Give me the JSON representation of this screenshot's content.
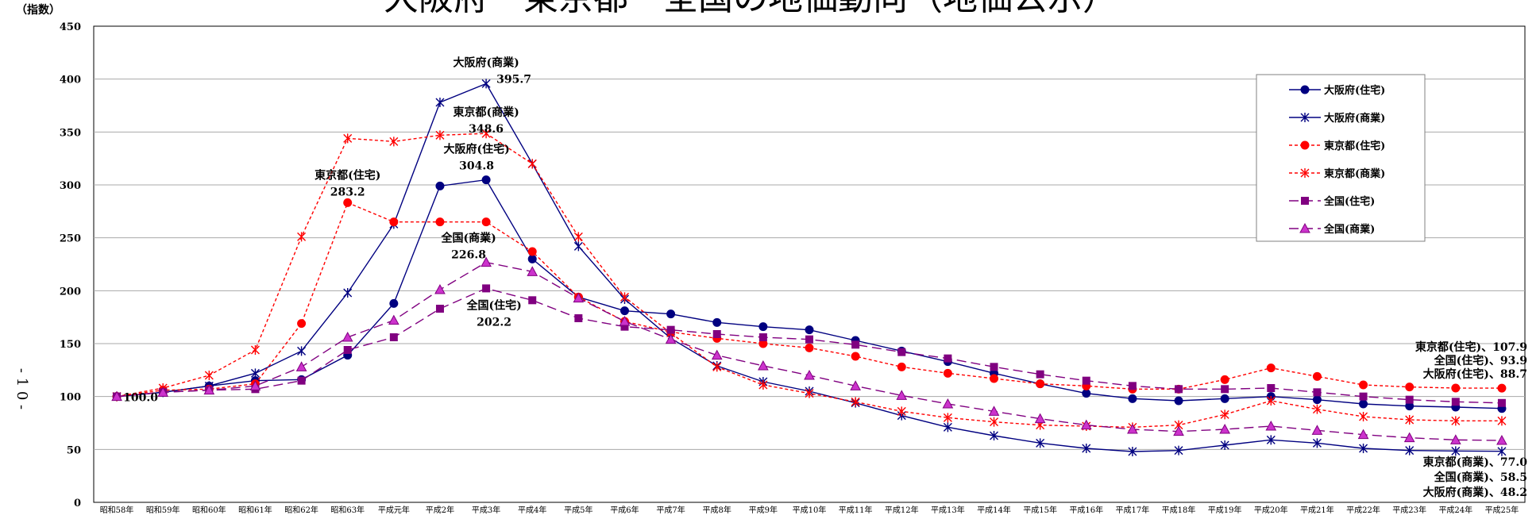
{
  "chart_data": {
    "type": "line",
    "title": "大阪府・東京都・全国の地価動向（地価公示）",
    "ylabel": "（指数）",
    "page_number": "- 1 0 -",
    "ylim": [
      0,
      450
    ],
    "yticks": [
      0,
      50,
      100,
      150,
      200,
      250,
      300,
      350,
      400,
      450
    ],
    "grid": true,
    "legend_position": "top-right",
    "categories": [
      "昭和58年",
      "昭和59年",
      "昭和60年",
      "昭和61年",
      "昭和62年",
      "昭和63年",
      "平成元年",
      "平成2年",
      "平成3年",
      "平成4年",
      "平成5年",
      "平成6年",
      "平成7年",
      "平成8年",
      "平成9年",
      "平成10年",
      "平成11年",
      "平成12年",
      "平成13年",
      "平成14年",
      "平成15年",
      "平成16年",
      "平成17年",
      "平成18年",
      "平成19年",
      "平成20年",
      "平成21年",
      "平成22年",
      "平成23年",
      "平成24年",
      "平成25年"
    ],
    "series": [
      {
        "name": "大阪府(住宅)",
        "color": "#000080",
        "dash": "",
        "marker": "circle",
        "values": [
          100,
          104,
          110,
          115,
          116,
          139,
          188,
          299,
          304.8,
          230,
          194,
          181,
          178,
          170,
          166,
          163,
          153,
          143,
          133,
          122,
          112,
          103,
          98,
          96,
          98,
          100,
          97,
          93,
          91,
          90,
          88.7
        ]
      },
      {
        "name": "大阪府(商業)",
        "color": "#000080",
        "dash": "",
        "marker": "x",
        "values": [
          100,
          104,
          110,
          122,
          143,
          198,
          263,
          378,
          395.7,
          320,
          242,
          192,
          155,
          129,
          114,
          105,
          94,
          82,
          71,
          63,
          56,
          51,
          48,
          49,
          54,
          59,
          56,
          51,
          49,
          48.5,
          48.2
        ]
      },
      {
        "name": "東京都(住宅)",
        "color": "#ff0000",
        "dash": "4,3",
        "marker": "circle",
        "values": [
          100,
          106,
          107,
          112,
          169,
          283.2,
          265,
          265,
          265,
          237,
          194,
          171,
          161,
          155,
          150,
          146,
          138,
          128,
          122,
          117,
          112,
          110,
          107,
          107,
          116,
          127,
          119,
          111,
          109,
          108,
          107.9
        ]
      },
      {
        "name": "東京都(商業)",
        "color": "#ff0000",
        "dash": "4,3",
        "marker": "x",
        "values": [
          100,
          108,
          120,
          144,
          251,
          344,
          341,
          347,
          348.6,
          320,
          251,
          194,
          160,
          128,
          111,
          103,
          95,
          86,
          80,
          76,
          73,
          72,
          71,
          73,
          83,
          96,
          88,
          81,
          78,
          77,
          77.0
        ]
      },
      {
        "name": "全国(住宅)",
        "color": "#800080",
        "dash": "12,6",
        "marker": "square",
        "values": [
          100,
          104,
          106,
          107,
          115,
          144,
          156,
          183,
          202.2,
          191,
          174,
          166,
          163,
          159,
          156,
          154,
          149,
          142,
          136,
          128,
          121,
          115,
          110,
          107,
          107,
          108,
          104,
          100,
          97,
          95,
          93.9
        ]
      },
      {
        "name": "全国(商業)",
        "color": "#800080",
        "dash": "12,6",
        "marker": "triangle",
        "values": [
          100,
          104,
          106,
          110,
          128,
          156,
          172,
          201,
          226.8,
          218,
          193,
          171,
          154,
          139,
          129,
          120,
          110,
          101,
          93,
          86,
          79,
          73,
          69,
          67,
          69,
          72,
          68,
          64,
          61,
          59,
          58.5
        ]
      }
    ],
    "annotations": [
      {
        "text": "100.0",
        "x": 0,
        "y": 100
      },
      {
        "text": "大阪府(商業)",
        "x": 8,
        "y": 395.7,
        "line": 1
      },
      {
        "text": "395.7",
        "x": 8,
        "y": 395.7,
        "line": 2
      },
      {
        "text": "東京都(商業)",
        "x": 8,
        "y": 348.6,
        "line": 1
      },
      {
        "text": "348.6",
        "x": 8,
        "y": 348.6,
        "line": 2
      },
      {
        "text": "大阪府(住宅)",
        "x": 8,
        "y": 304.8,
        "line": 1
      },
      {
        "text": "304.8",
        "x": 8,
        "y": 304.8,
        "line": 2
      },
      {
        "text": "東京都(住宅)",
        "x": 5,
        "y": 283.2,
        "line": 1
      },
      {
        "text": "283.2",
        "x": 5,
        "y": 283.2,
        "line": 2
      },
      {
        "text": "全国(商業)",
        "x": 8,
        "y": 226.8,
        "line": 1
      },
      {
        "text": "226.8",
        "x": 8,
        "y": 226.8,
        "line": 2
      },
      {
        "text": "全国(住宅)",
        "x": 8,
        "y": 202.2,
        "line": 1
      },
      {
        "text": "202.2",
        "x": 8,
        "y": 202.2,
        "line": 2
      }
    ],
    "end_labels_upper": [
      "東京都(住宅)、107.9",
      "全国(住宅)、93.9",
      "大阪府(住宅)、88.7"
    ],
    "end_labels_lower": [
      "東京都(商業)、77.0",
      "全国(商業)、58.5",
      "大阪府(商業)、48.2"
    ]
  }
}
